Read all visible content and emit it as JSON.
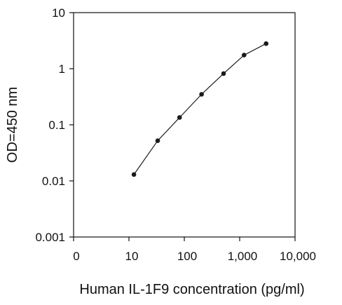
{
  "chart_data": {
    "type": "line",
    "title": "",
    "xlabel": "Human IL-1F9 concentration (pg/ml)",
    "ylabel": "OD=450 nm",
    "x_scale": "log",
    "y_scale": "log",
    "xlim": [
      1,
      10000
    ],
    "ylim": [
      0.001,
      10
    ],
    "x_ticks": [
      {
        "value": 1,
        "label": "0"
      },
      {
        "value": 10,
        "label": "10"
      },
      {
        "value": 100,
        "label": "100"
      },
      {
        "value": 1000,
        "label": "1,000"
      },
      {
        "value": 10000,
        "label": "10,000"
      }
    ],
    "y_ticks": [
      {
        "value": 0.001,
        "label": "0.001"
      },
      {
        "value": 0.01,
        "label": "0.01"
      },
      {
        "value": 0.1,
        "label": "0.1"
      },
      {
        "value": 1,
        "label": "1"
      },
      {
        "value": 10,
        "label": "10"
      }
    ],
    "grid": false,
    "series": [
      {
        "x": [
          12.3,
          33,
          82,
          205,
          512,
          1200,
          3000
        ],
        "y": [
          0.013,
          0.052,
          0.135,
          0.35,
          0.82,
          1.75,
          2.8
        ],
        "color": "#1a1a1a",
        "marker": "circle"
      }
    ]
  }
}
